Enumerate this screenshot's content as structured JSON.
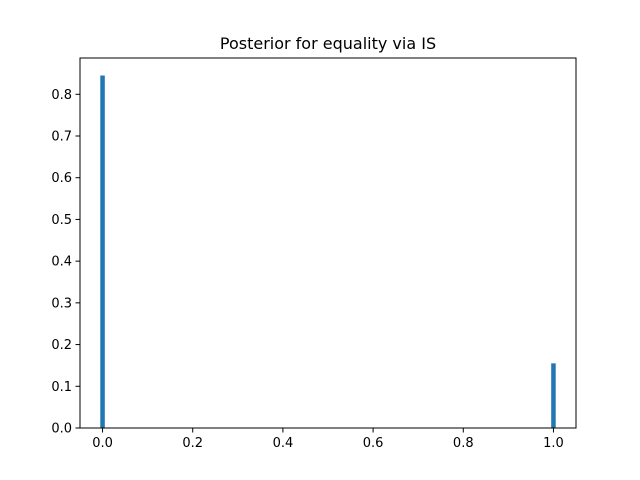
{
  "chart_data": {
    "type": "bar",
    "title": "Posterior for equality via IS",
    "xlabel": "",
    "ylabel": "",
    "x": [
      0.0,
      1.0
    ],
    "values": [
      0.845,
      0.155
    ],
    "bar_width": 0.01,
    "xlim": [
      -0.05,
      1.05
    ],
    "ylim": [
      0.0,
      0.887
    ],
    "xticks": [
      0.0,
      0.2,
      0.4,
      0.6,
      0.8,
      1.0
    ],
    "xtick_labels": [
      "0.0",
      "0.2",
      "0.4",
      "0.6",
      "0.8",
      "1.0"
    ],
    "yticks": [
      0.0,
      0.1,
      0.2,
      0.3,
      0.4,
      0.5,
      0.6,
      0.7,
      0.8
    ],
    "ytick_labels": [
      "0.0",
      "0.1",
      "0.2",
      "0.3",
      "0.4",
      "0.5",
      "0.6",
      "0.7",
      "0.8"
    ],
    "grid": false,
    "bar_color": "#1f77b4"
  }
}
